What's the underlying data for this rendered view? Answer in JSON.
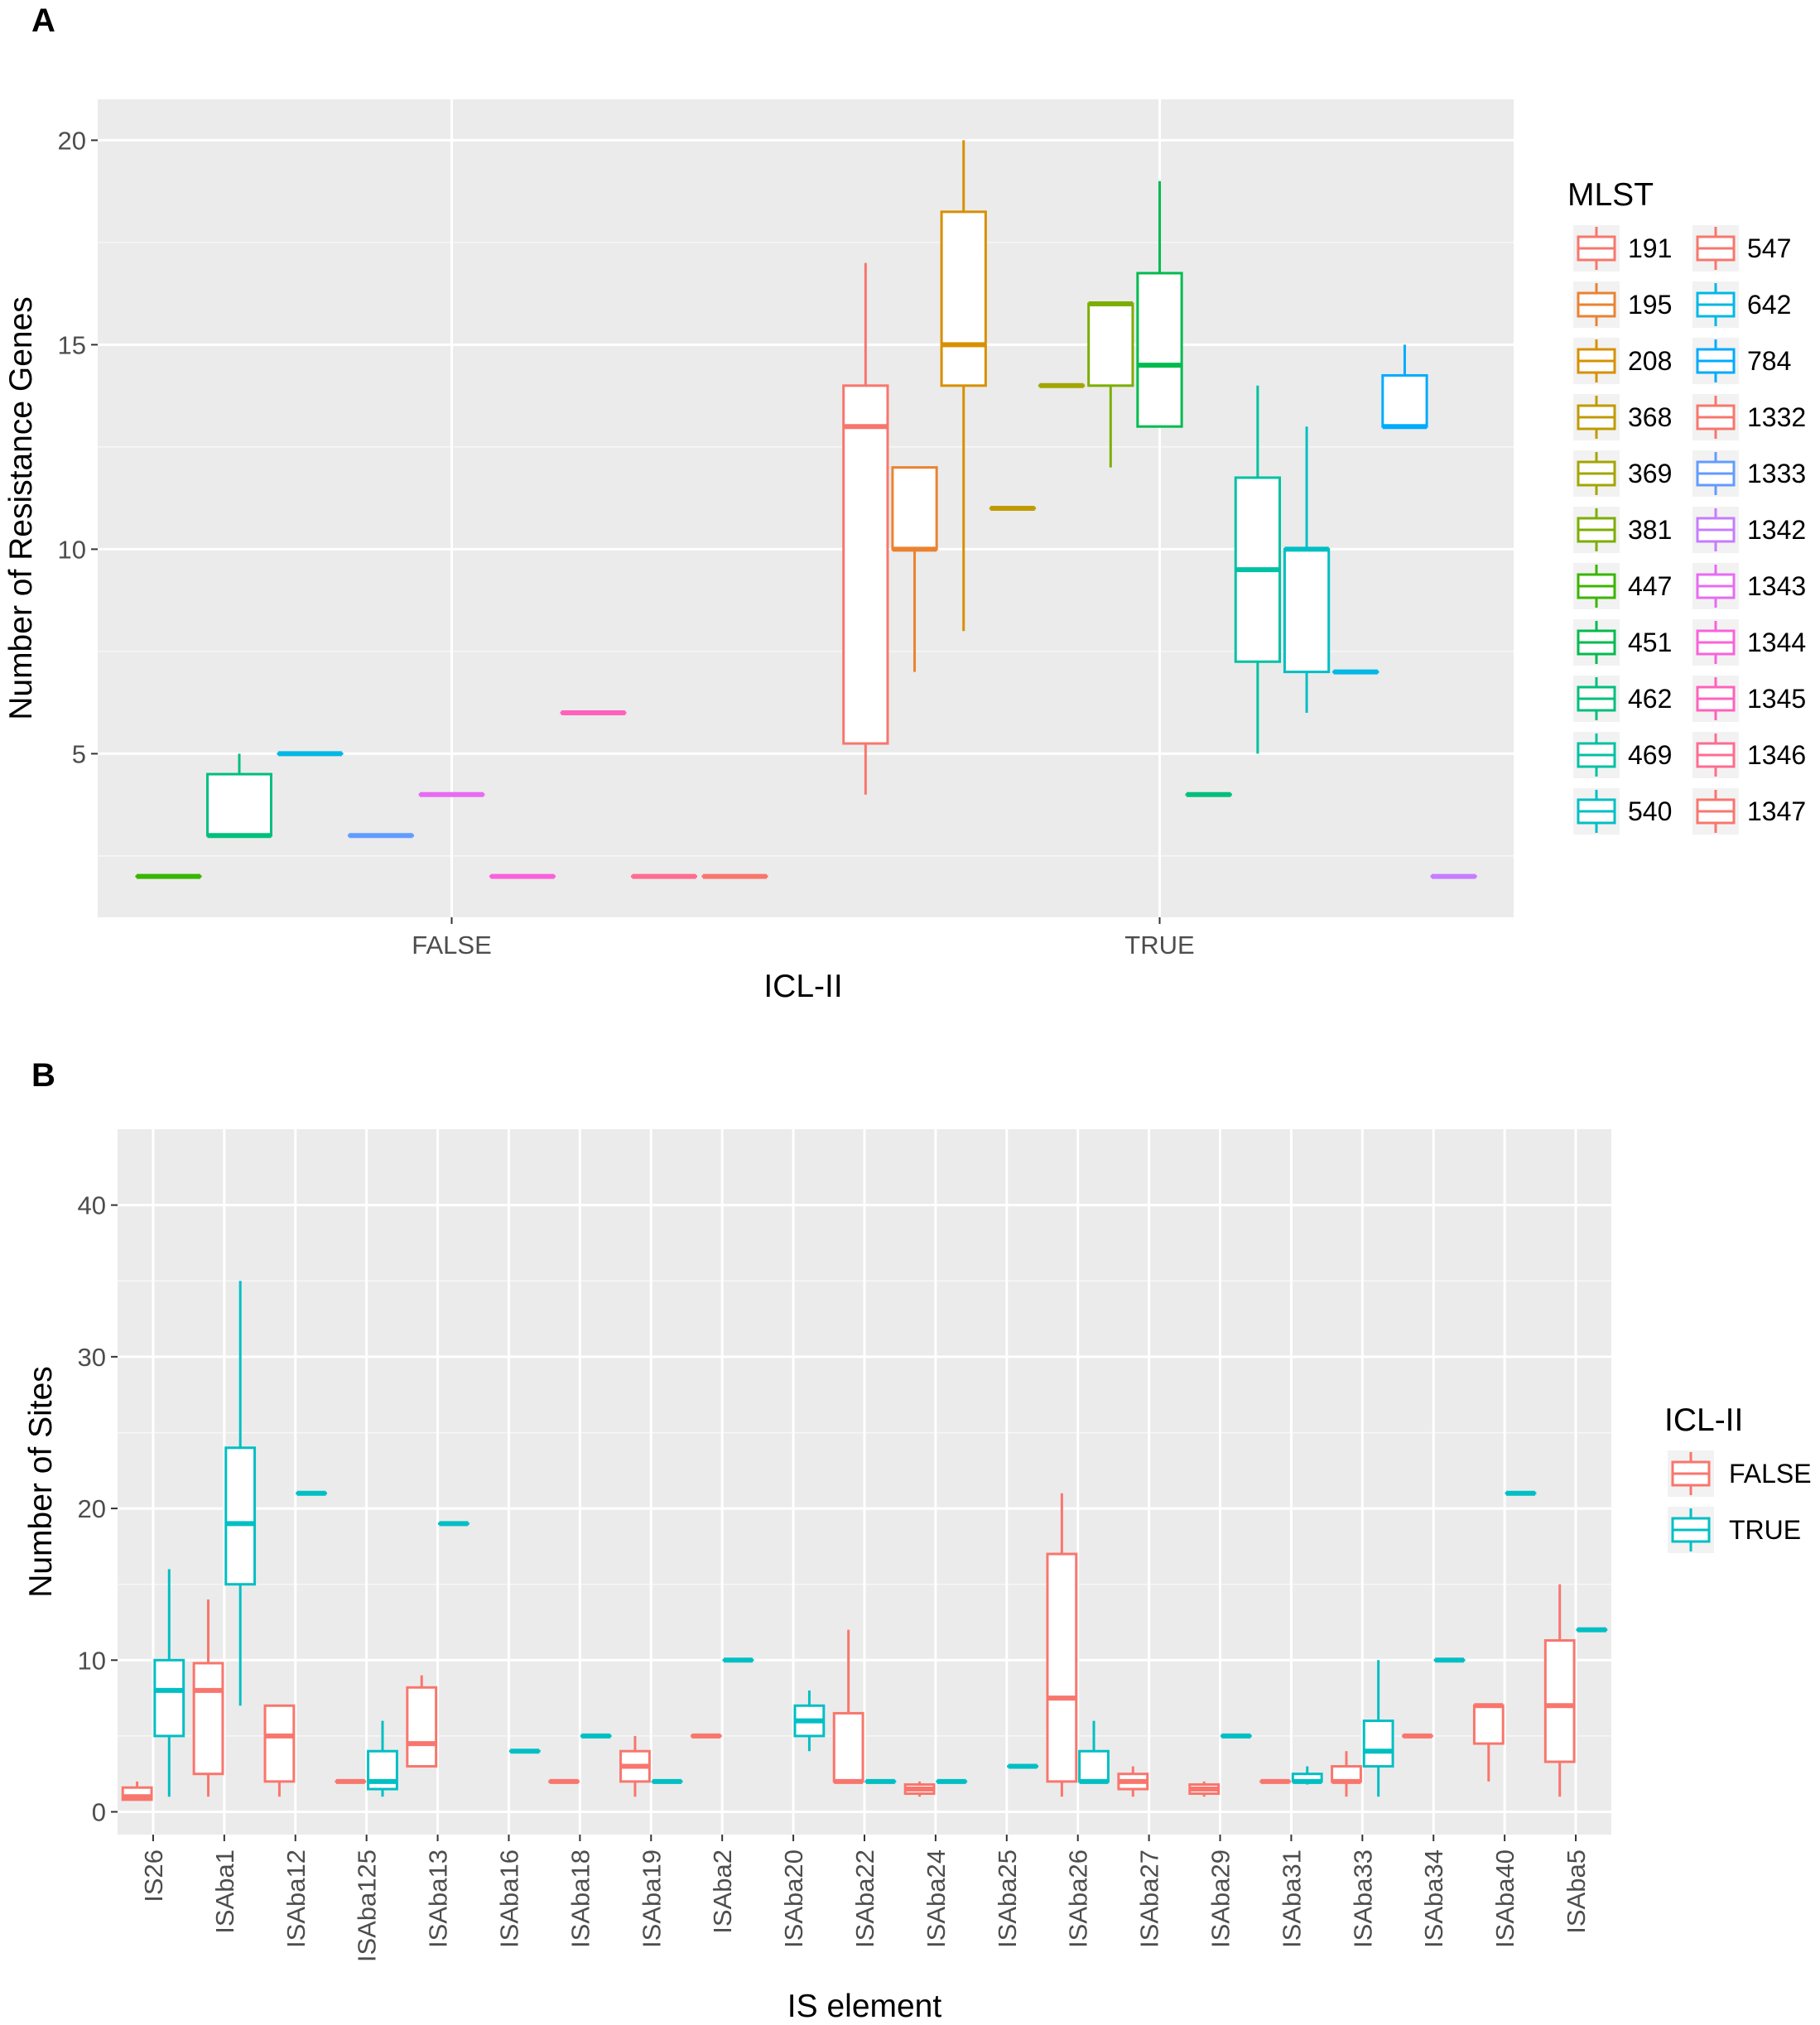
{
  "chart_data": [
    {
      "panel_label": "A",
      "type": "boxplot",
      "xlabel": "ICL-II",
      "ylabel": "Number of Resistance Genes",
      "categories": [
        "FALSE",
        "TRUE"
      ],
      "ylim": [
        1,
        21
      ],
      "yticks": [
        "5",
        "10",
        "15",
        "20"
      ],
      "grid": true,
      "legend": {
        "title": "MLST",
        "position": "right",
        "columns": [
          [
            "191",
            "195",
            "208",
            "368",
            "369",
            "381",
            "447",
            "451",
            "462",
            "469",
            "540"
          ],
          [
            "547",
            "642",
            "784",
            "1332",
            "1333",
            "1342",
            "1343",
            "1344",
            "1345",
            "1346",
            "1347"
          ]
        ]
      },
      "series": [
        {
          "name": "191",
          "color": "#F8766D",
          "category": "TRUE",
          "min": 4,
          "q1": 5.25,
          "median": 13,
          "q3": 14,
          "max": 17
        },
        {
          "name": "195",
          "color": "#EA8331",
          "category": "TRUE",
          "min": 7,
          "q1": 10,
          "median": 10,
          "q3": 12,
          "max": 12
        },
        {
          "name": "208",
          "color": "#D89000",
          "category": "TRUE",
          "min": 8,
          "q1": 14,
          "median": 15,
          "q3": 18.25,
          "max": 20
        },
        {
          "name": "368",
          "color": "#C09B00",
          "category": "TRUE",
          "min": 11,
          "q1": 11,
          "median": 11,
          "q3": 11,
          "max": 11
        },
        {
          "name": "369",
          "color": "#A3A500",
          "category": "TRUE",
          "min": 14,
          "q1": 14,
          "median": 14,
          "q3": 14,
          "max": 14
        },
        {
          "name": "381",
          "color": "#7CAE00",
          "category": "TRUE",
          "min": 12,
          "q1": 14,
          "median": 16,
          "q3": 16,
          "max": 16
        },
        {
          "name": "447",
          "color": "#39B600",
          "category": "FALSE",
          "min": 2,
          "q1": 2,
          "median": 2,
          "q3": 2,
          "max": 2
        },
        {
          "name": "451",
          "color": "#00BB4E",
          "category": "TRUE",
          "min": 13,
          "q1": 13,
          "median": 14.5,
          "q3": 16.75,
          "max": 19
        },
        {
          "name": "462",
          "color": "#00BF7D",
          "category": "FALSE",
          "min": 3,
          "q1": 3,
          "median": 3,
          "q3": 4.5,
          "max": 5
        },
        {
          "name": "462",
          "color": "#00BF7D",
          "category": "TRUE",
          "min": 4,
          "q1": 4,
          "median": 4,
          "q3": 4,
          "max": 4
        },
        {
          "name": "469",
          "color": "#00C1A3",
          "category": "TRUE",
          "min": 5,
          "q1": 7.25,
          "median": 9.5,
          "q3": 11.75,
          "max": 14
        },
        {
          "name": "540",
          "color": "#00BFC4",
          "category": "TRUE",
          "min": 6,
          "q1": 7,
          "median": 10,
          "q3": 10,
          "max": 13
        },
        {
          "name": "642",
          "color": "#00B8E5",
          "category": "FALSE",
          "min": 5,
          "q1": 5,
          "median": 5,
          "q3": 5,
          "max": 5
        },
        {
          "name": "642",
          "color": "#00B8E5",
          "category": "TRUE",
          "min": 7,
          "q1": 7,
          "median": 7,
          "q3": 7,
          "max": 7
        },
        {
          "name": "784",
          "color": "#00ABFD",
          "category": "TRUE",
          "min": 13,
          "q1": 13,
          "median": 13,
          "q3": 14.25,
          "max": 15
        },
        {
          "name": "1333",
          "color": "#619CFF",
          "category": "FALSE",
          "min": 3,
          "q1": 3,
          "median": 3,
          "q3": 3,
          "max": 3
        },
        {
          "name": "1342",
          "color": "#C77CFF",
          "category": "TRUE",
          "min": 2,
          "q1": 2,
          "median": 2,
          "q3": 2,
          "max": 2
        },
        {
          "name": "1343",
          "color": "#E76BF3",
          "category": "FALSE",
          "min": 4,
          "q1": 4,
          "median": 4,
          "q3": 4,
          "max": 4
        },
        {
          "name": "1344",
          "color": "#FA62DB",
          "category": "FALSE",
          "min": 2,
          "q1": 2,
          "median": 2,
          "q3": 2,
          "max": 2
        },
        {
          "name": "1345",
          "color": "#FF62BC",
          "category": "FALSE",
          "min": 6,
          "q1": 6,
          "median": 6,
          "q3": 6,
          "max": 6
        },
        {
          "name": "1346",
          "color": "#FF6C91",
          "category": "FALSE",
          "min": 2,
          "q1": 2,
          "median": 2,
          "q3": 2,
          "max": 2
        },
        {
          "name": "1347",
          "color": "#F8766D",
          "category": "FALSE",
          "min": 2,
          "q1": 2,
          "median": 2,
          "q3": 2,
          "max": 2
        }
      ]
    },
    {
      "panel_label": "B",
      "type": "boxplot",
      "xlabel": "IS element",
      "ylabel": "Number of Sites",
      "categories": [
        "IS26",
        "ISAba1",
        "ISAba12",
        "ISAba125",
        "ISAba13",
        "ISAba16",
        "ISAba18",
        "ISAba19",
        "ISAba2",
        "ISAba20",
        "ISAba22",
        "ISAba24",
        "ISAba25",
        "ISAba26",
        "ISAba27",
        "ISAba29",
        "ISAba31",
        "ISAba33",
        "ISAba34",
        "ISAba40",
        "ISAba5"
      ],
      "ylim": [
        -1.5,
        45
      ],
      "yticks": [
        "0",
        "10",
        "20",
        "30",
        "40"
      ],
      "grid": true,
      "legend": {
        "title": "ICL-II",
        "position": "right",
        "entries": [
          "FALSE",
          "TRUE"
        ]
      },
      "series": [
        {
          "name": "FALSE",
          "color": "#F8766D",
          "boxes": [
            {
              "category": "IS26",
              "min": 0.8,
              "q1": 0.8,
              "median": 1,
              "q3": 1.6,
              "max": 2
            },
            {
              "category": "ISAba1",
              "min": 1,
              "q1": 2.5,
              "median": 8,
              "q3": 9.8,
              "max": 14
            },
            {
              "category": "ISAba12",
              "min": 1,
              "q1": 2,
              "median": 5,
              "q3": 7,
              "max": 7
            },
            {
              "category": "ISAba125",
              "min": 2,
              "q1": 2,
              "median": 2,
              "q3": 2,
              "max": 2
            },
            {
              "category": "ISAba13",
              "min": 3,
              "q1": 3,
              "median": 4.5,
              "q3": 8.2,
              "max": 9
            },
            {
              "category": "ISAba18",
              "min": 2,
              "q1": 2,
              "median": 2,
              "q3": 2,
              "max": 2
            },
            {
              "category": "ISAba19",
              "min": 1,
              "q1": 2,
              "median": 3,
              "q3": 4,
              "max": 5
            },
            {
              "category": "ISAba2",
              "min": 5,
              "q1": 5,
              "median": 5,
              "q3": 5,
              "max": 5
            },
            {
              "category": "ISAba22",
              "min": 2,
              "q1": 2,
              "median": 2,
              "q3": 6.5,
              "max": 12
            },
            {
              "category": "ISAba24",
              "min": 1,
              "q1": 1.2,
              "median": 1.5,
              "q3": 1.8,
              "max": 2
            },
            {
              "category": "ISAba26",
              "min": 1,
              "q1": 2,
              "median": 7.5,
              "q3": 17,
              "max": 21
            },
            {
              "category": "ISAba27",
              "min": 1,
              "q1": 1.5,
              "median": 2,
              "q3": 2.5,
              "max": 3
            },
            {
              "category": "ISAba29",
              "min": 1,
              "q1": 1.2,
              "median": 1.5,
              "q3": 1.8,
              "max": 2
            },
            {
              "category": "ISAba31",
              "min": 2,
              "q1": 2,
              "median": 2,
              "q3": 2,
              "max": 2
            },
            {
              "category": "ISAba33",
              "min": 1,
              "q1": 2,
              "median": 2,
              "q3": 3,
              "max": 4
            },
            {
              "category": "ISAba34",
              "min": 5,
              "q1": 5,
              "median": 5,
              "q3": 5,
              "max": 5
            },
            {
              "category": "ISAba40",
              "min": 2,
              "q1": 4.5,
              "median": 7,
              "q3": 7,
              "max": 7
            },
            {
              "category": "ISAba5",
              "min": 1,
              "q1": 3.3,
              "median": 7,
              "q3": 11.3,
              "max": 15
            }
          ]
        },
        {
          "name": "TRUE",
          "color": "#00BFC4",
          "boxes": [
            {
              "category": "IS26",
              "min": 1,
              "q1": 5,
              "median": 8,
              "q3": 10,
              "max": 16
            },
            {
              "category": "ISAba1",
              "min": 7,
              "q1": 15,
              "median": 19,
              "q3": 24,
              "max": 35
            },
            {
              "category": "ISAba12",
              "min": 21,
              "q1": 21,
              "median": 21,
              "q3": 21,
              "max": 21
            },
            {
              "category": "ISAba125",
              "min": 1,
              "q1": 1.5,
              "median": 2,
              "q3": 4,
              "max": 6
            },
            {
              "category": "ISAba13",
              "min": 19,
              "q1": 19,
              "median": 19,
              "q3": 19,
              "max": 19
            },
            {
              "category": "ISAba16",
              "min": 4,
              "q1": 4,
              "median": 4,
              "q3": 4,
              "max": 4
            },
            {
              "category": "ISAba18",
              "min": 5,
              "q1": 5,
              "median": 5,
              "q3": 5,
              "max": 5
            },
            {
              "category": "ISAba19",
              "min": 2,
              "q1": 2,
              "median": 2,
              "q3": 2,
              "max": 2
            },
            {
              "category": "ISAba2",
              "min": 10,
              "q1": 10,
              "median": 10,
              "q3": 10,
              "max": 10
            },
            {
              "category": "ISAba20",
              "min": 4,
              "q1": 5,
              "median": 6,
              "q3": 7,
              "max": 8
            },
            {
              "category": "ISAba22",
              "min": 2,
              "q1": 2,
              "median": 2,
              "q3": 2,
              "max": 2
            },
            {
              "category": "ISAba24",
              "min": 2,
              "q1": 2,
              "median": 2,
              "q3": 2,
              "max": 2
            },
            {
              "category": "ISAba25",
              "min": 3,
              "q1": 3,
              "median": 3,
              "q3": 3,
              "max": 3
            },
            {
              "category": "ISAba26",
              "min": 2,
              "q1": 2,
              "median": 2,
              "q3": 4,
              "max": 6
            },
            {
              "category": "ISAba29",
              "min": 5,
              "q1": 5,
              "median": 5,
              "q3": 5,
              "max": 5
            },
            {
              "category": "ISAba31",
              "min": 1.8,
              "q1": 2,
              "median": 2,
              "q3": 2.5,
              "max": 3
            },
            {
              "category": "ISAba33",
              "min": 1,
              "q1": 3,
              "median": 4,
              "q3": 6,
              "max": 10
            },
            {
              "category": "ISAba34",
              "min": 10,
              "q1": 10,
              "median": 10,
              "q3": 10,
              "max": 10
            },
            {
              "category": "ISAba40",
              "min": 21,
              "q1": 21,
              "median": 21,
              "q3": 21,
              "max": 21
            },
            {
              "category": "ISAba5",
              "min": 12,
              "q1": 12,
              "median": 12,
              "q3": 12,
              "max": 12
            }
          ]
        }
      ]
    }
  ]
}
